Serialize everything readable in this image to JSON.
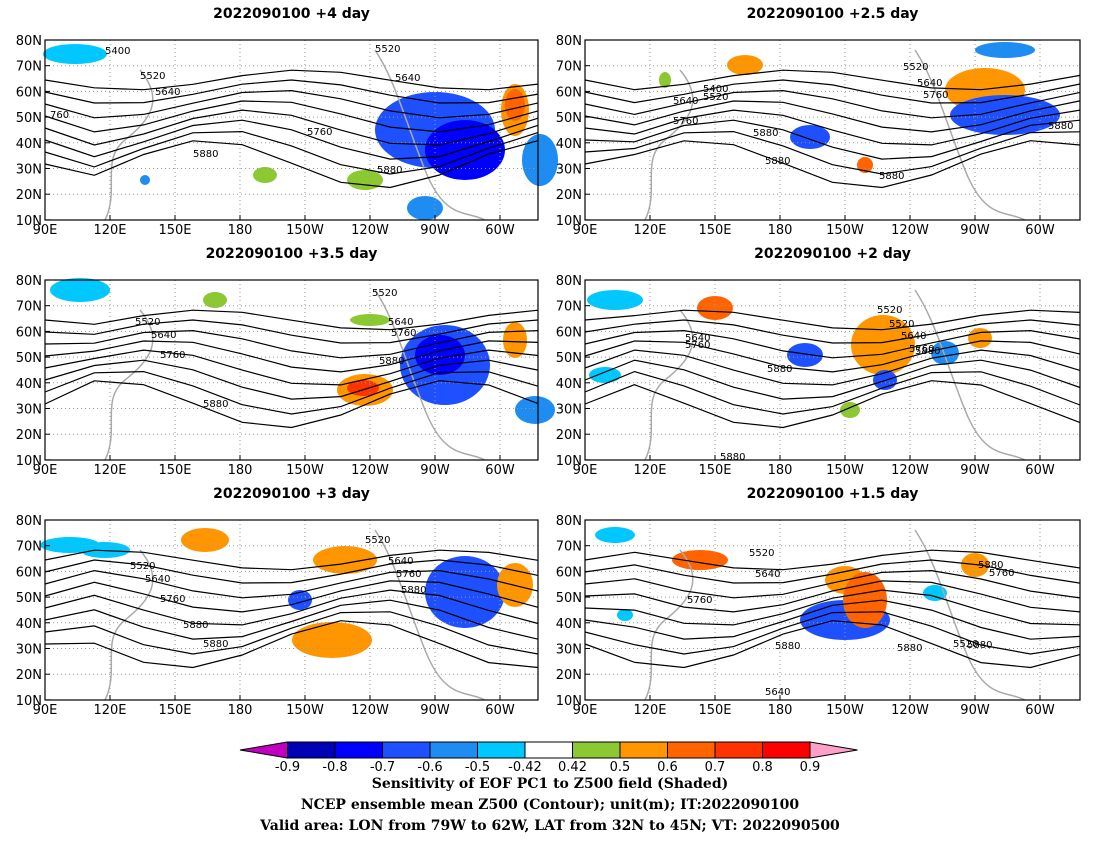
{
  "panels": [
    {
      "title": "2022090100  +4 day"
    },
    {
      "title": "2022090100  +2.5  day"
    },
    {
      "title": "2022090100  +3.5  day"
    },
    {
      "title": "2022090100  +2  day"
    },
    {
      "title": "2022090100  +3  day"
    },
    {
      "title": "2022090100  +1.5  day"
    }
  ],
  "axes": {
    "lat_ticks": [
      "80N",
      "70N",
      "60N",
      "50N",
      "40N",
      "30N",
      "20N",
      "10N"
    ],
    "lon_ticks": [
      "90E",
      "120E",
      "150E",
      "180",
      "150W",
      "120W",
      "90W",
      "60W"
    ]
  },
  "contour_labels": [
    [
      "5400",
      "5520",
      "5640",
      "5760",
      "5880",
      "5880",
      "5520",
      "5640",
      "760"
    ],
    [
      "5400",
      "5520",
      "5640",
      "5760",
      "5880",
      "5880",
      "5880",
      "5520",
      "5640",
      "5760",
      "5880"
    ],
    [
      "5520",
      "5640",
      "5760",
      "5880",
      "5520",
      "5640",
      "5760",
      "5880"
    ],
    [
      "5520",
      "5640",
      "5760",
      "5880",
      "5880",
      "5520",
      "5640",
      "5760",
      "5880"
    ],
    [
      "5520",
      "5640",
      "5760",
      "5880",
      "5880",
      "5520",
      "5640",
      "5760",
      "5880"
    ],
    [
      "5520",
      "5640",
      "5760",
      "5880",
      "5520",
      "5640",
      "5760",
      "5880",
      "5880",
      "5880"
    ]
  ],
  "colorbar": {
    "labels": [
      "-0.9",
      "-0.8",
      "-0.7",
      "-0.6",
      "-0.5",
      "-0.42",
      "0.42",
      "0.5",
      "0.6",
      "0.7",
      "0.8",
      "0.9"
    ],
    "colors": [
      "#c000c0",
      "#0000b4",
      "#0000ff",
      "#1e50ff",
      "#1e8cf0",
      "#00c8ff",
      "#ffffff",
      "#8cc832",
      "#ff9600",
      "#ff6400",
      "#ff3200",
      "#ff0000",
      "#ffa0c8"
    ]
  },
  "footer": {
    "line1": "Sensitivity of EOF PC1 to Z500 field (Shaded)",
    "line2": "NCEP ensemble mean Z500 (Contour); unit(m); IT:2022090100",
    "line3": "Valid area: LON from 79W to 62W, LAT from 32N to 45N; VT: 2022090500"
  }
}
